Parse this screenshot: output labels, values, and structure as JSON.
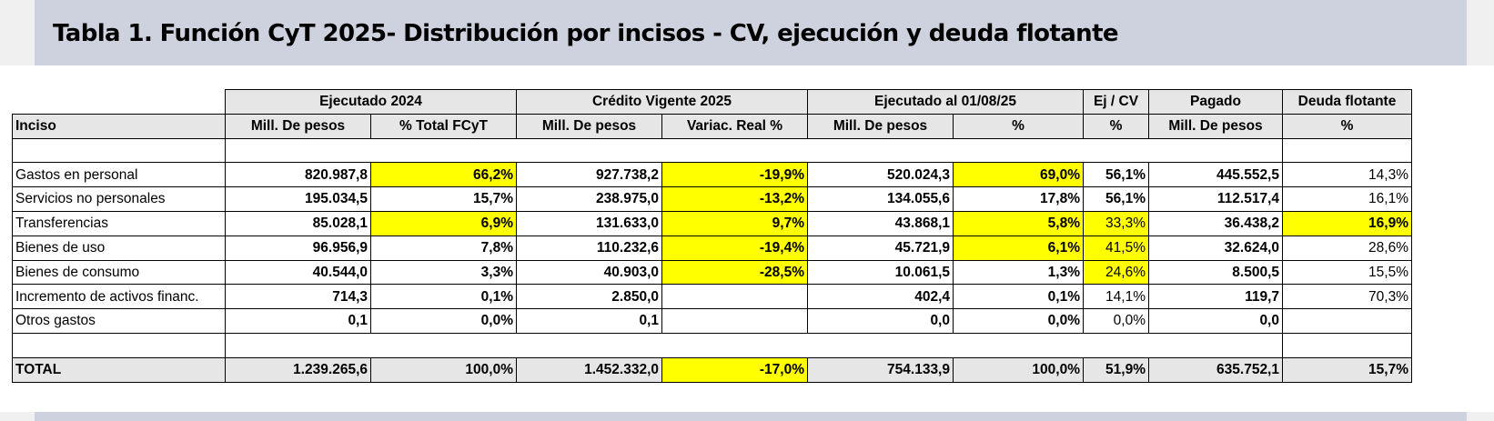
{
  "title": "Tabla 1. Función CyT 2025- Distribución por incisos -  CV, ejecución y deuda flotante",
  "groups": {
    "ejecutado_2024": "Ejecutado 2024",
    "credito_vigente_2025": "Crédito Vigente 2025",
    "ejecutado_al": "Ejecutado al 01/08/25",
    "ej_cv": "Ej / CV",
    "pagado": "Pagado",
    "deuda_flotante": "Deuda flotante"
  },
  "subheaders": {
    "inciso": "Inciso",
    "c1": "Mill. De pesos",
    "c2": "% Total FCyT",
    "c3": "Mill. De pesos",
    "c4": "Variac. Real %",
    "c5": "Mill. De pesos",
    "c6": "%",
    "c7": "%",
    "c8": "Mill. De pesos",
    "c9": "%"
  },
  "rows": [
    {
      "label": "Gastos en personal",
      "c1": "820.987,8",
      "c2": "66,2%",
      "c3": "927.738,2",
      "c4": "-19,9%",
      "c5": "520.024,3",
      "c6": "69,0%",
      "c7": "56,1%",
      "c8": "445.552,5",
      "c9": "14,3%"
    },
    {
      "label": "Servicios no personales",
      "c1": "195.034,5",
      "c2": "15,7%",
      "c3": "238.975,0",
      "c4": "-13,2%",
      "c5": "134.055,6",
      "c6": "17,8%",
      "c7": "56,1%",
      "c8": "112.517,4",
      "c9": "16,1%"
    },
    {
      "label": "Transferencias",
      "c1": "85.028,1",
      "c2": "6,9%",
      "c3": "131.633,0",
      "c4": "9,7%",
      "c5": "43.868,1",
      "c6": "5,8%",
      "c7": "33,3%",
      "c8": "36.438,2",
      "c9": "16,9%"
    },
    {
      "label": "Bienes de uso",
      "c1": "96.956,9",
      "c2": "7,8%",
      "c3": "110.232,6",
      "c4": "-19,4%",
      "c5": "45.721,9",
      "c6": "6,1%",
      "c7": "41,5%",
      "c8": "32.624,0",
      "c9": "28,6%"
    },
    {
      "label": "Bienes de consumo",
      "c1": "40.544,0",
      "c2": "3,3%",
      "c3": "40.903,0",
      "c4": "-28,5%",
      "c5": "10.061,5",
      "c6": "1,3%",
      "c7": "24,6%",
      "c8": "8.500,5",
      "c9": "15,5%"
    },
    {
      "label": "Incremento de activos financ.",
      "c1": "714,3",
      "c2": "0,1%",
      "c3": "2.850,0",
      "c4": "",
      "c5": "402,4",
      "c6": "0,1%",
      "c7": "14,1%",
      "c8": "119,7",
      "c9": "70,3%"
    },
    {
      "label": "Otros gastos",
      "c1": "0,1",
      "c2": "0,0%",
      "c3": "0,1",
      "c4": "",
      "c5": "0,0",
      "c6": "0,0%",
      "c7": "0,0%",
      "c8": "0,0",
      "c9": ""
    }
  ],
  "total": {
    "label": "TOTAL",
    "c1": "1.239.265,6",
    "c2": "100,0%",
    "c3": "1.452.332,0",
    "c4": "-17,0%",
    "c5": "754.133,9",
    "c6": "100,0%",
    "c7": "51,9%",
    "c8": "635.752,1",
    "c9": "15,7%"
  },
  "highlight_color": "#ffff00",
  "header_fill": "#e6e6e6",
  "banner_color": "#ced2de"
}
